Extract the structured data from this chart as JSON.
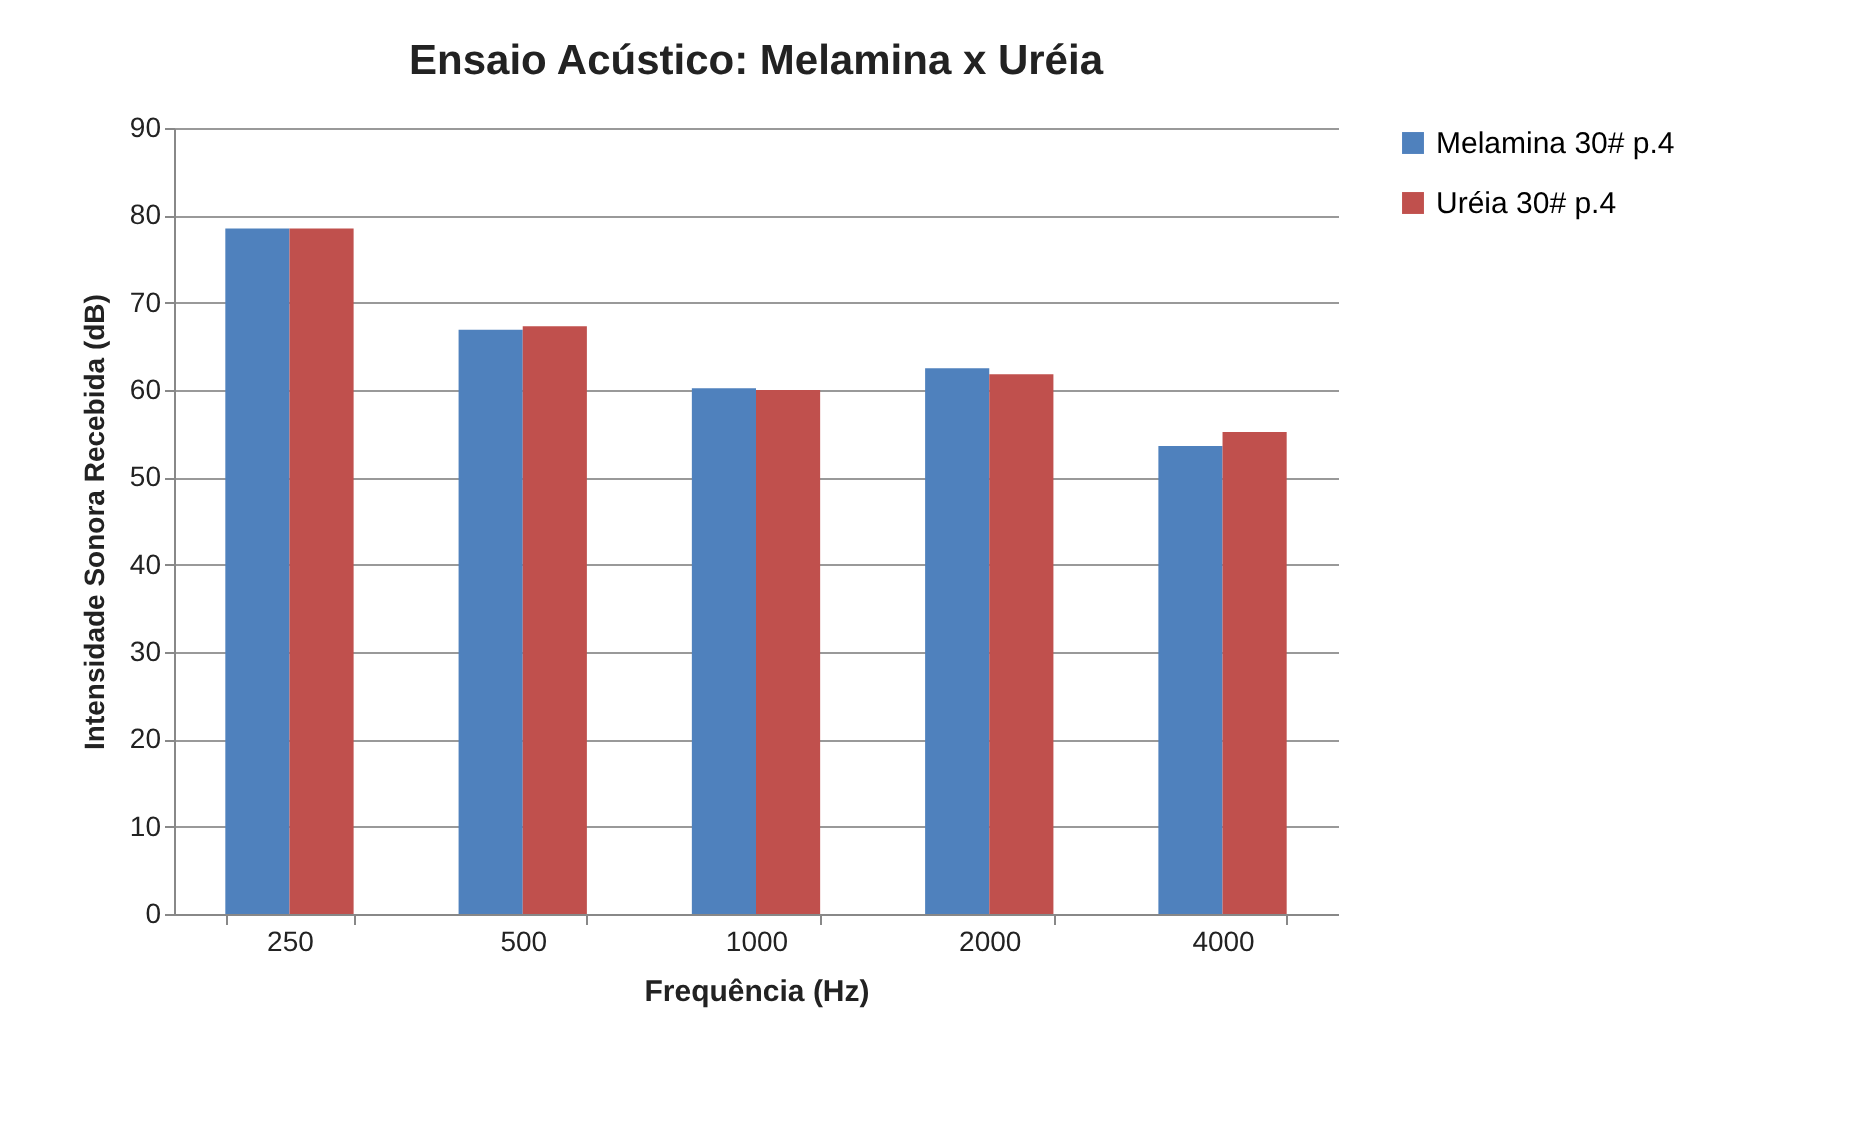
{
  "chart_data": {
    "type": "bar",
    "title": "Ensaio Acústico: Melamina x Uréia",
    "xlabel": "Frequência (Hz)",
    "ylabel": "Intensidade Sonora Recebida (dB)",
    "categories": [
      "250",
      "500",
      "1000",
      "2000",
      "4000"
    ],
    "series": [
      {
        "name": "Melamina 30# p.4",
        "color": "#4f81bd",
        "values": [
          78.5,
          66.9,
          60.2,
          62.5,
          53.6
        ]
      },
      {
        "name": "Uréia 30# p.4",
        "color": "#c0504d",
        "values": [
          78.5,
          67.3,
          60.0,
          61.8,
          55.2
        ]
      }
    ],
    "ylim": [
      0,
      90
    ],
    "yticks": [
      0,
      10,
      20,
      30,
      40,
      50,
      60,
      70,
      80,
      90
    ],
    "grid": "y",
    "legend": "right"
  }
}
